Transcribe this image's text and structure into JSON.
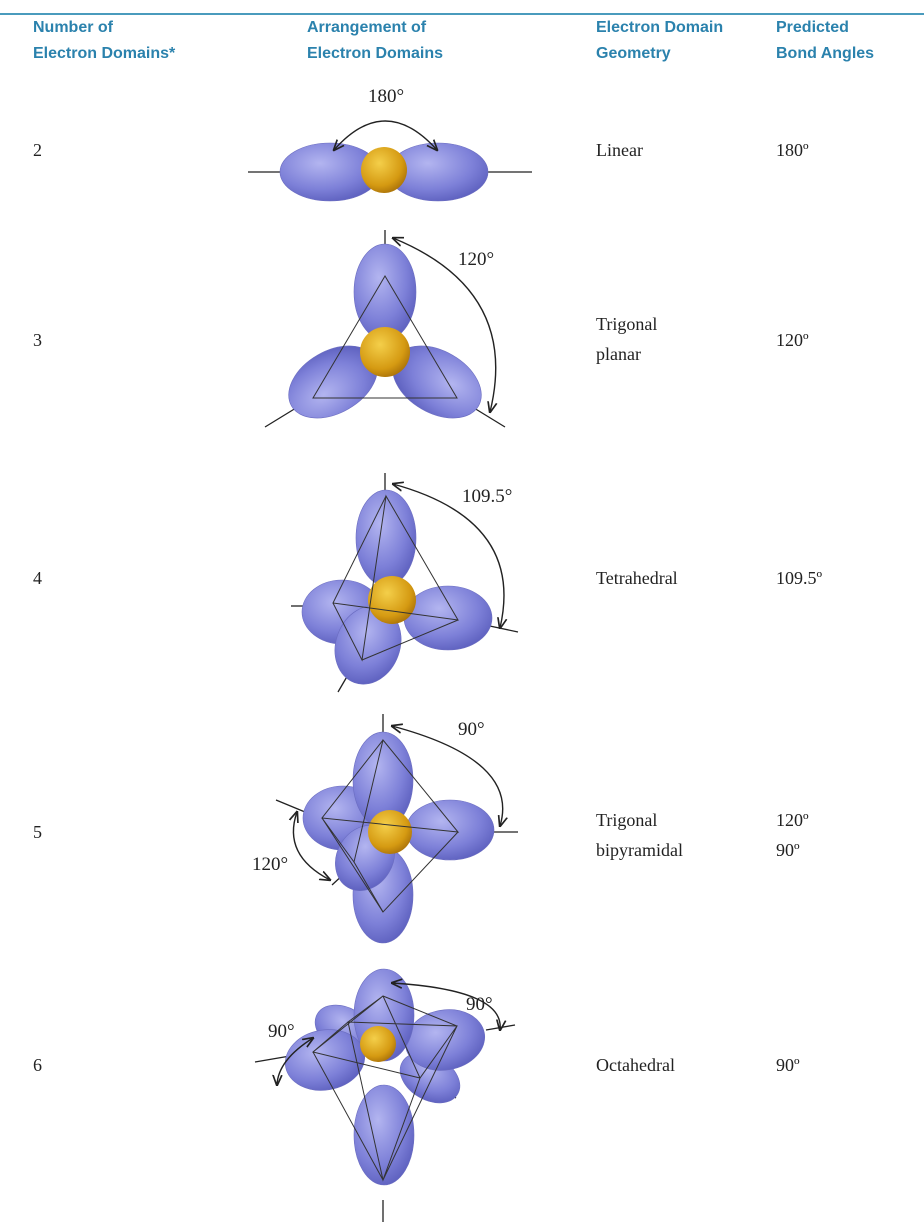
{
  "table": {
    "headers": [
      [
        "Number of",
        "Electron Domains*"
      ],
      [
        "Arrangement of",
        "Electron Domains"
      ],
      [
        "Electron Domain",
        "Geometry"
      ],
      [
        "Predicted",
        "Bond Angles"
      ]
    ],
    "rows": [
      {
        "number": "2",
        "angle_labels": [
          "180°"
        ],
        "geometry": [
          "Linear"
        ],
        "bond_angles": [
          "180º"
        ]
      },
      {
        "number": "3",
        "angle_labels": [
          "120°"
        ],
        "geometry": [
          "Trigonal",
          "planar"
        ],
        "bond_angles": [
          "120º"
        ]
      },
      {
        "number": "4",
        "angle_labels": [
          "109.5°"
        ],
        "geometry": [
          "Tetrahedral"
        ],
        "bond_angles": [
          "109.5º"
        ]
      },
      {
        "number": "5",
        "angle_labels": [
          "90°",
          "120°"
        ],
        "geometry": [
          "Trigonal",
          "bipyramidal"
        ],
        "bond_angles": [
          "120º",
          "90º"
        ]
      },
      {
        "number": "6",
        "angle_labels": [
          "90°",
          "90°"
        ],
        "geometry": [
          "Octahedral"
        ],
        "bond_angles": [
          "90º"
        ]
      }
    ]
  }
}
